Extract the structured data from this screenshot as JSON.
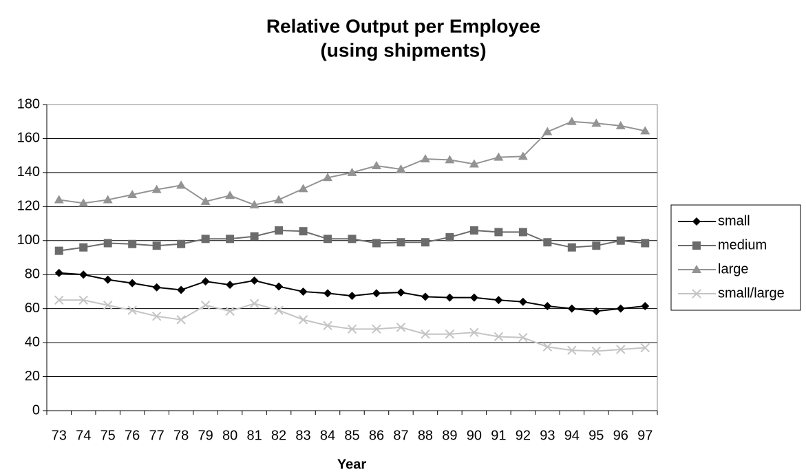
{
  "chart_data": {
    "type": "line",
    "title": "Relative Output per Employee",
    "subtitle": "(using shipments)",
    "x_label": "Year",
    "categories": [
      "73",
      "74",
      "75",
      "76",
      "77",
      "78",
      "79",
      "80",
      "81",
      "82",
      "83",
      "84",
      "85",
      "86",
      "87",
      "88",
      "89",
      "90",
      "91",
      "92",
      "93",
      "94",
      "95",
      "96",
      "97"
    ],
    "series": [
      {
        "name": "small",
        "color": "#000000",
        "marker": "diamond",
        "values": [
          81,
          80,
          77,
          75,
          72.5,
          71,
          76,
          74,
          76.5,
          73,
          70,
          69,
          67.5,
          69,
          69.5,
          67,
          66.5,
          66.5,
          65,
          64,
          61.5,
          60,
          58.5,
          60,
          61.5
        ]
      },
      {
        "name": "medium",
        "color": "#6b6b6b",
        "marker": "square",
        "values": [
          94,
          96,
          98.5,
          98,
          97,
          98,
          101,
          101,
          102.5,
          106,
          105.5,
          101,
          101,
          98.5,
          99,
          99,
          102,
          106,
          105,
          105,
          99,
          96,
          97,
          100,
          98.5
        ]
      },
      {
        "name": "large",
        "color": "#939393",
        "marker": "triangle",
        "values": [
          124,
          122,
          124,
          127,
          130,
          132.5,
          123,
          126.5,
          121,
          124,
          130.5,
          137,
          140,
          144,
          142,
          148,
          147.5,
          145,
          149,
          149.5,
          164,
          170,
          169,
          167.5,
          164.5
        ]
      },
      {
        "name": "small/large",
        "color": "#c4c4c4",
        "marker": "x",
        "values": [
          65,
          65,
          62,
          59,
          55.5,
          53.5,
          62,
          58.5,
          63,
          59,
          53.5,
          50,
          48,
          48,
          49,
          45,
          45,
          46,
          43.5,
          43,
          37.5,
          35.5,
          35,
          36,
          37
        ]
      }
    ],
    "ylim": [
      0,
      180
    ],
    "yticks": [
      0,
      20,
      40,
      60,
      80,
      100,
      120,
      140,
      160,
      180
    ],
    "grid": true,
    "legend": "right"
  }
}
